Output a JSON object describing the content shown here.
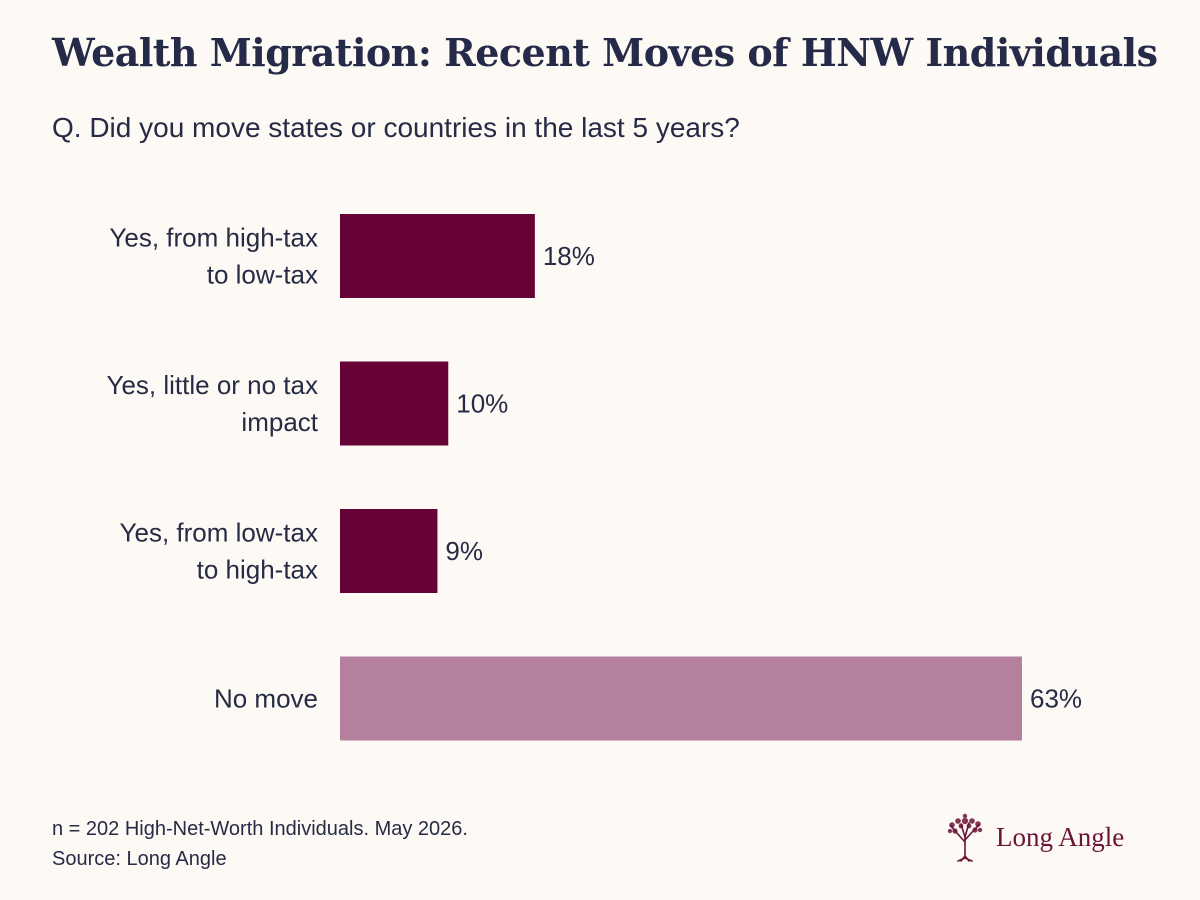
{
  "header": {
    "title": "Wealth Migration: Recent Moves of HNW Individuals",
    "subtitle": "Q. Did you move states or countries in the last 5 years?"
  },
  "chart_data": {
    "type": "bar",
    "orientation": "horizontal",
    "categories": [
      [
        "Yes, from high-tax",
        "to low-tax"
      ],
      [
        "Yes, little or no tax",
        "impact"
      ],
      [
        "Yes, from low-tax",
        "to high-tax"
      ],
      [
        "No move"
      ]
    ],
    "values": [
      18,
      10,
      9,
      63
    ],
    "value_labels": [
      "18%",
      "10%",
      "9%",
      "63%"
    ],
    "bar_colors": [
      "#670237",
      "#670237",
      "#670237",
      "#b5809e"
    ],
    "xlim": [
      0,
      63
    ],
    "grid": false,
    "axes_visible": false
  },
  "footer": {
    "note": "n = 202 High-Net-Worth Individuals. May 2026.",
    "source": "Source: Long Angle",
    "logo_text": "Long Angle",
    "logo_icon": "tree-icon"
  },
  "colors": {
    "background": "#fdf9f4",
    "text": "#272b45",
    "accent": "#670237",
    "muted_accent": "#b5809e",
    "logo": "#6b1338"
  }
}
